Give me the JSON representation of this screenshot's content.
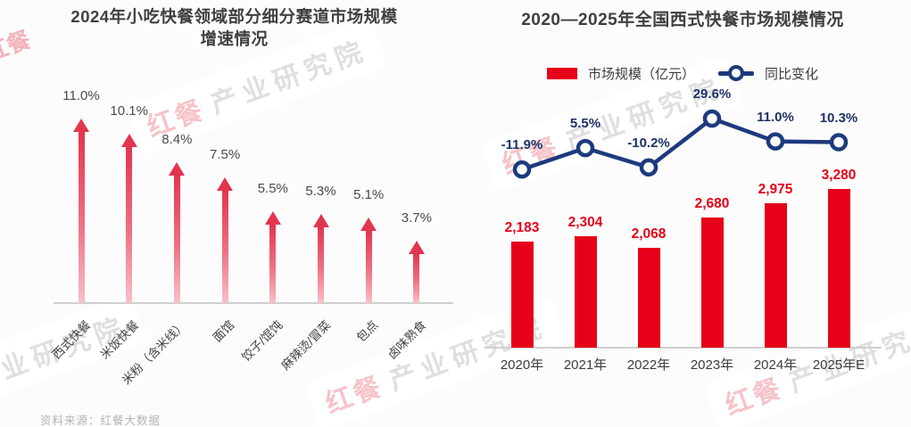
{
  "source_note": "资料来源：红餐大数据",
  "watermark": {
    "brand": "红餐",
    "text": "产业研究院"
  },
  "colors": {
    "bar_red": "#e60019",
    "arrow_red": "#e23550",
    "arrow_red_fade": "#f8c0c7",
    "line_navy": "#1c3a7e",
    "line_label_navy": "#1d3264",
    "title_gray": "#3f3f3f",
    "axis_gray": "#cfcfcf",
    "source_gray": "#b5b5b5"
  },
  "chart_data": [
    {
      "type": "bar",
      "style": "up-arrows",
      "title": "2024年小吃快餐领域部分细分赛道市场规模增速情况",
      "title_lines": [
        "2024年小吃快餐领域部分细分赛道市场规模",
        "增速情况"
      ],
      "categories": [
        "西式快餐",
        "米饭快餐",
        "米粉（含米线）",
        "面馆",
        "饺子/馄饨",
        "麻辣烫/冒菜",
        "包点",
        "卤味熟食"
      ],
      "values": [
        11.0,
        10.1,
        8.4,
        7.5,
        5.5,
        5.3,
        5.1,
        3.7
      ],
      "value_labels": [
        "11.0%",
        "10.1%",
        "8.4%",
        "7.5%",
        "5.5%",
        "5.3%",
        "5.1%",
        "3.7%"
      ],
      "unit": "%",
      "ylim": [
        0,
        12
      ],
      "grid": false,
      "legend": false
    },
    {
      "type": "bar+line",
      "title": "2020—2025年全国西式快餐市场规模情况",
      "categories": [
        "2020年",
        "2021年",
        "2022年",
        "2023年",
        "2024年",
        "2025年E"
      ],
      "series": [
        {
          "name": "市场规模（亿元）",
          "type": "bar",
          "values": [
            2183,
            2304,
            2068,
            2680,
            2975,
            3280
          ],
          "value_labels": [
            "2,183",
            "2,304",
            "2,068",
            "2,680",
            "2,975",
            "3,280"
          ],
          "ylim": [
            0,
            3600
          ]
        },
        {
          "name": "同比变化",
          "type": "line",
          "values": [
            -11.9,
            5.5,
            -10.2,
            29.6,
            11.0,
            10.3
          ],
          "value_labels": [
            "-11.9%",
            "5.5%",
            "-10.2%",
            "29.6%",
            "11.0%",
            "10.3%"
          ],
          "ylim": [
            -20,
            35
          ]
        }
      ],
      "legend_position": "top",
      "grid": false
    }
  ]
}
